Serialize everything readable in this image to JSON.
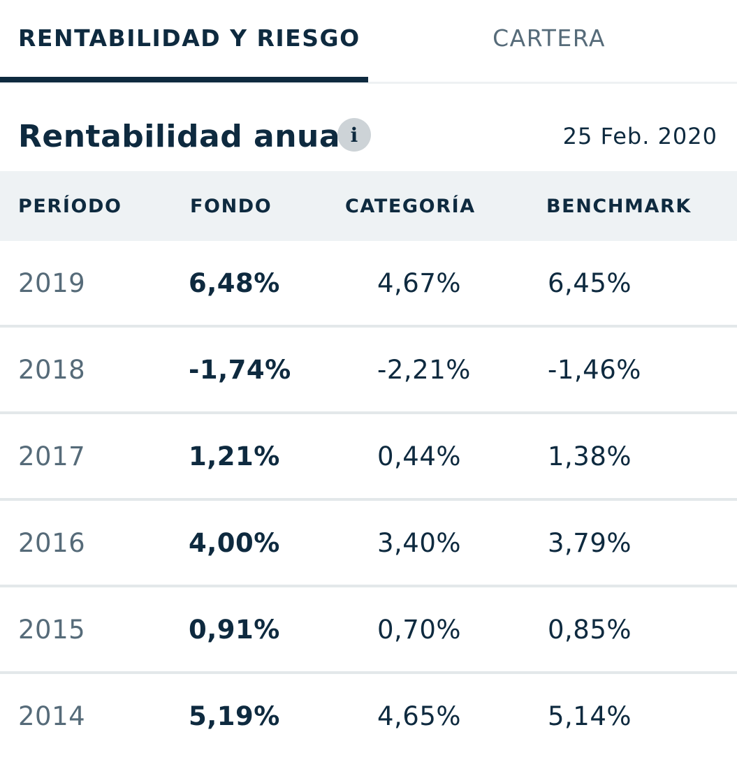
{
  "tabs": [
    {
      "label": "RENTABILIDAD Y RIESGO",
      "active": true
    },
    {
      "label": "CARTERA",
      "active": false
    }
  ],
  "section": {
    "title": "Rentabilidad anual",
    "info_icon": "info-icon",
    "info_glyph": "i",
    "date": "25 Feb. 2020"
  },
  "table": {
    "headers": [
      "PERÍODO",
      "FONDO",
      "CATEGORÍA",
      "BENCHMARK"
    ],
    "rows": [
      {
        "period": "2019",
        "fund": "6,48%",
        "category": "4,67%",
        "benchmark": "6,45%"
      },
      {
        "period": "2018",
        "fund": "-1,74%",
        "category": "-2,21%",
        "benchmark": "-1,46%"
      },
      {
        "period": "2017",
        "fund": "1,21%",
        "category": "0,44%",
        "benchmark": "1,38%"
      },
      {
        "period": "2016",
        "fund": "4,00%",
        "category": "3,40%",
        "benchmark": "3,79%"
      },
      {
        "period": "2015",
        "fund": "0,91%",
        "category": "0,70%",
        "benchmark": "0,85%"
      },
      {
        "period": "2014",
        "fund": "5,19%",
        "category": "4,65%",
        "benchmark": "5,14%"
      }
    ]
  },
  "colors": {
    "text_primary": "#0e2a3f",
    "text_muted": "#566b79",
    "header_bg": "#eef2f4",
    "divider": "#e3e8ea",
    "active_tab_underline": "#0e2a3f"
  }
}
